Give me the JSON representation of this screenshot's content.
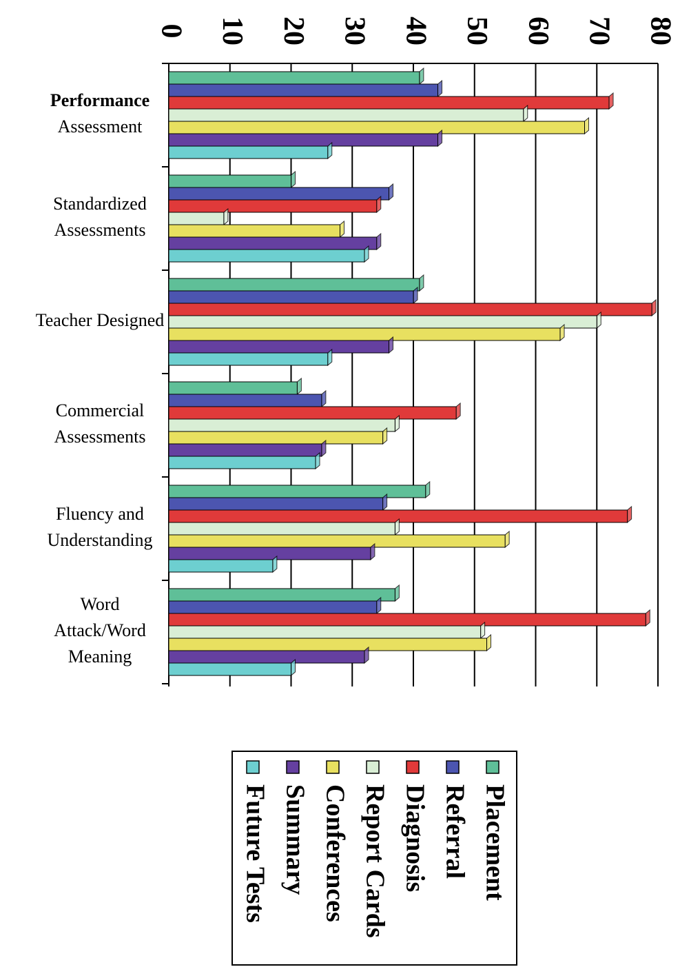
{
  "chart_data": {
    "type": "hbar",
    "categories": [
      [
        "Performance",
        "Assessment"
      ],
      [
        "Standardized",
        "Assessments"
      ],
      [
        "Teacher Designed"
      ],
      [
        "Commercial",
        "Assessments"
      ],
      [
        "Fluency and",
        "Understanding"
      ],
      [
        "Word",
        "Attack/Word",
        "Meaning"
      ]
    ],
    "series": [
      {
        "name": "Placement",
        "color": "#5fbf98",
        "values": [
          41,
          20,
          41,
          21,
          42,
          37
        ]
      },
      {
        "name": "Referral",
        "color": "#4c55b0",
        "values": [
          44,
          36,
          40,
          25,
          35,
          34
        ]
      },
      {
        "name": "Diagnosis",
        "color": "#e03a3a",
        "values": [
          72,
          34,
          79,
          47,
          75,
          78
        ]
      },
      {
        "name": "Report Cards",
        "color": "#d9eed5",
        "values": [
          58,
          9,
          70,
          37,
          37,
          51
        ]
      },
      {
        "name": "Conferences",
        "color": "#e8e060",
        "values": [
          68,
          28,
          64,
          35,
          55,
          52
        ]
      },
      {
        "name": "Summary",
        "color": "#6540a0",
        "values": [
          44,
          34,
          36,
          25,
          33,
          32
        ]
      },
      {
        "name": "Future Tests",
        "color": "#6dcfd0",
        "values": [
          26,
          32,
          26,
          24,
          17,
          20
        ]
      }
    ],
    "xlim": [
      0,
      80
    ],
    "xticks": [
      0,
      10,
      20,
      30,
      40,
      50,
      60,
      70,
      80
    ],
    "grid": true,
    "legend": "bottom"
  }
}
